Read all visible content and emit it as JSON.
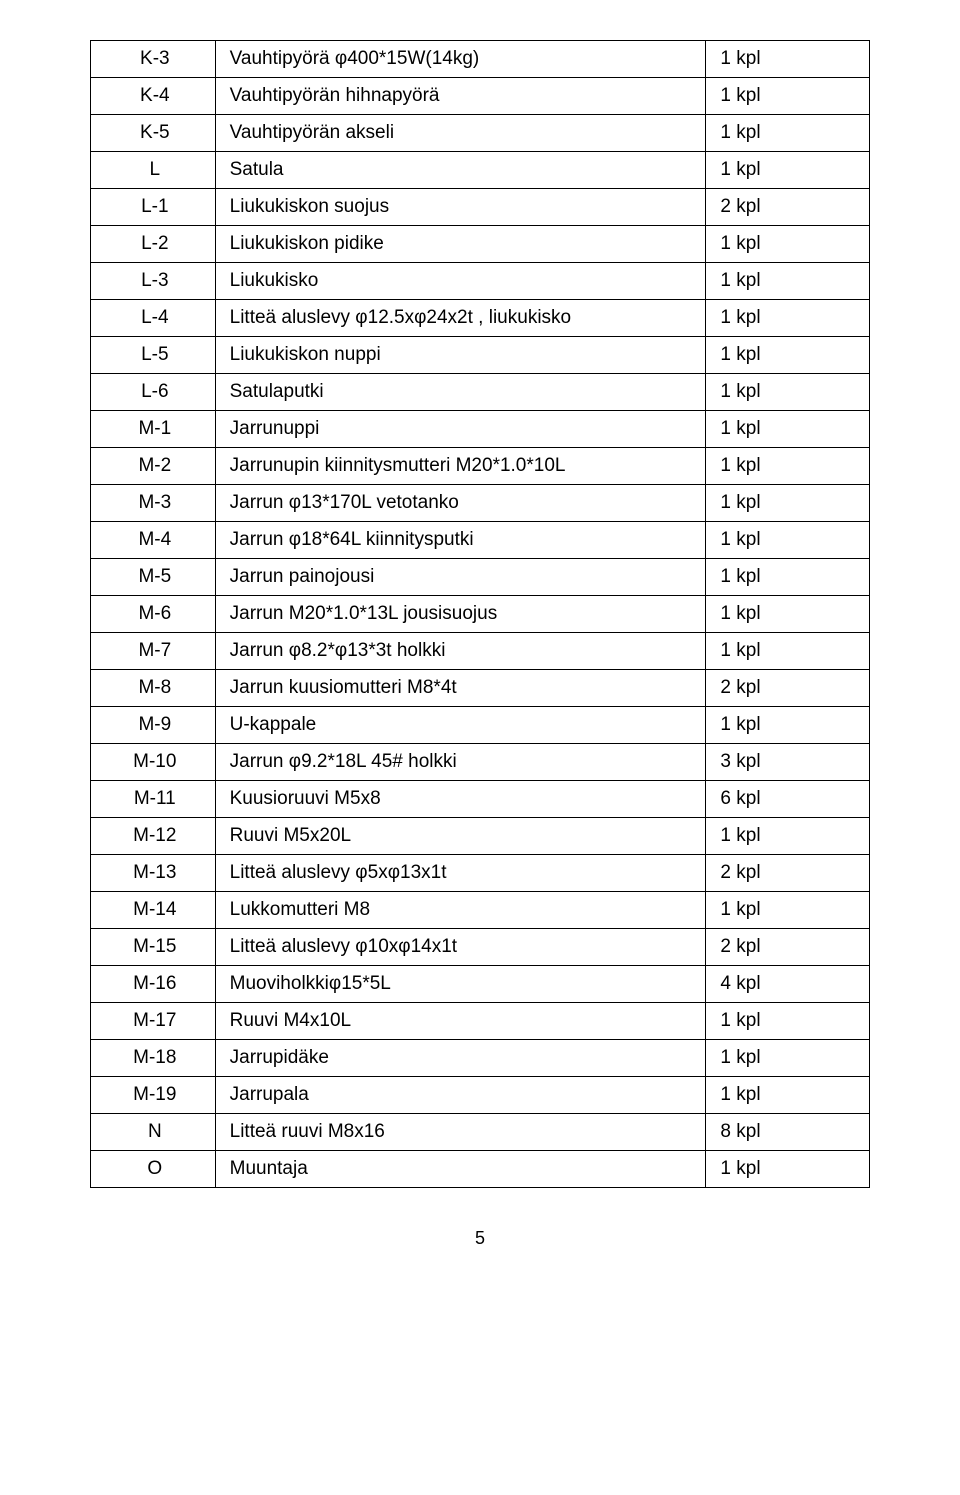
{
  "text_color": "#000000",
  "border_color": "#000000",
  "background_color": "#ffffff",
  "font_size_cell": 19,
  "col_widths_pct": [
    16,
    63,
    21
  ],
  "page_number": "5",
  "rows": [
    {
      "code": "K-3",
      "desc": "Vauhtipyörä    φ400*15W(14kg)",
      "qty": "1 kpl"
    },
    {
      "code": "K-4",
      "desc": "Vauhtipyörän hihnapyörä",
      "qty": "1 kpl"
    },
    {
      "code": "K-5",
      "desc": "Vauhtipyörän akseli",
      "qty": "1 kpl"
    },
    {
      "code": "L",
      "desc": "Satula",
      "qty": "1 kpl"
    },
    {
      "code": "L-1",
      "desc": "Liukukiskon suojus",
      "qty": "2 kpl"
    },
    {
      "code": "L-2",
      "desc": "Liukukiskon pidike",
      "qty": "1 kpl"
    },
    {
      "code": "L-3",
      "desc": "Liukukisko",
      "qty": "1 kpl"
    },
    {
      "code": "L-4",
      "desc": "Litteä aluslevy φ12.5xφ24x2t , liukukisko",
      "qty": "1 kpl"
    },
    {
      "code": "L-5",
      "desc": "Liukukiskon nuppi",
      "qty": "1 kpl"
    },
    {
      "code": "L-6",
      "desc": "Satulaputki",
      "qty": "1 kpl"
    },
    {
      "code": "M-1",
      "desc": "Jarrunuppi",
      "qty": "1 kpl"
    },
    {
      "code": "M-2",
      "desc": "Jarrunupin kiinnitysmutteri M20*1.0*10L",
      "qty": "1 kpl"
    },
    {
      "code": "M-3",
      "desc": "Jarrun φ13*170L vetotanko",
      "qty": "1 kpl"
    },
    {
      "code": "M-4",
      "desc": "Jarrun φ18*64L kiinnitysputki",
      "qty": "1 kpl"
    },
    {
      "code": "M-5",
      "desc": "Jarrun painojousi",
      "qty": "1 kpl"
    },
    {
      "code": "M-6",
      "desc": "Jarrun M20*1.0*13L jousisuojus",
      "qty": "1 kpl"
    },
    {
      "code": "M-7",
      "desc": "Jarrun φ8.2*φ13*3t holkki",
      "qty": "1 kpl"
    },
    {
      "code": "M-8",
      "desc": "Jarrun kuusiomutteri M8*4t",
      "qty": "2 kpl"
    },
    {
      "code": "M-9",
      "desc": "U-kappale",
      "qty": "1 kpl"
    },
    {
      "code": "M-10",
      "desc": "Jarrun φ9.2*18L 45# holkki",
      "qty": "3 kpl"
    },
    {
      "code": "M-11",
      "desc": "Kuusioruuvi M5x8",
      "qty": "6 kpl"
    },
    {
      "code": "M-12",
      "desc": "Ruuvi M5x20L",
      "qty": "1 kpl"
    },
    {
      "code": "M-13",
      "desc": "Litteä aluslevy φ5xφ13x1t",
      "qty": "2 kpl"
    },
    {
      "code": "M-14",
      "desc": "Lukkomutteri M8",
      "qty": "1 kpl"
    },
    {
      "code": "M-15",
      "desc": "Litteä aluslevy φ10xφ14x1t",
      "qty": "2 kpl"
    },
    {
      "code": "M-16",
      "desc": "Muoviholkkiφ15*5L",
      "qty": "4 kpl"
    },
    {
      "code": "M-17",
      "desc": "Ruuvi M4x10L",
      "qty": "1 kpl"
    },
    {
      "code": "M-18",
      "desc": "Jarrupidäke",
      "qty": "1 kpl"
    },
    {
      "code": "M-19",
      "desc": "Jarrupala",
      "qty": "1 kpl"
    },
    {
      "code": "N",
      "desc": "Litteä ruuvi M8x16",
      "qty": "8 kpl"
    },
    {
      "code": "O",
      "desc": "Muuntaja",
      "qty": "1 kpl"
    }
  ]
}
